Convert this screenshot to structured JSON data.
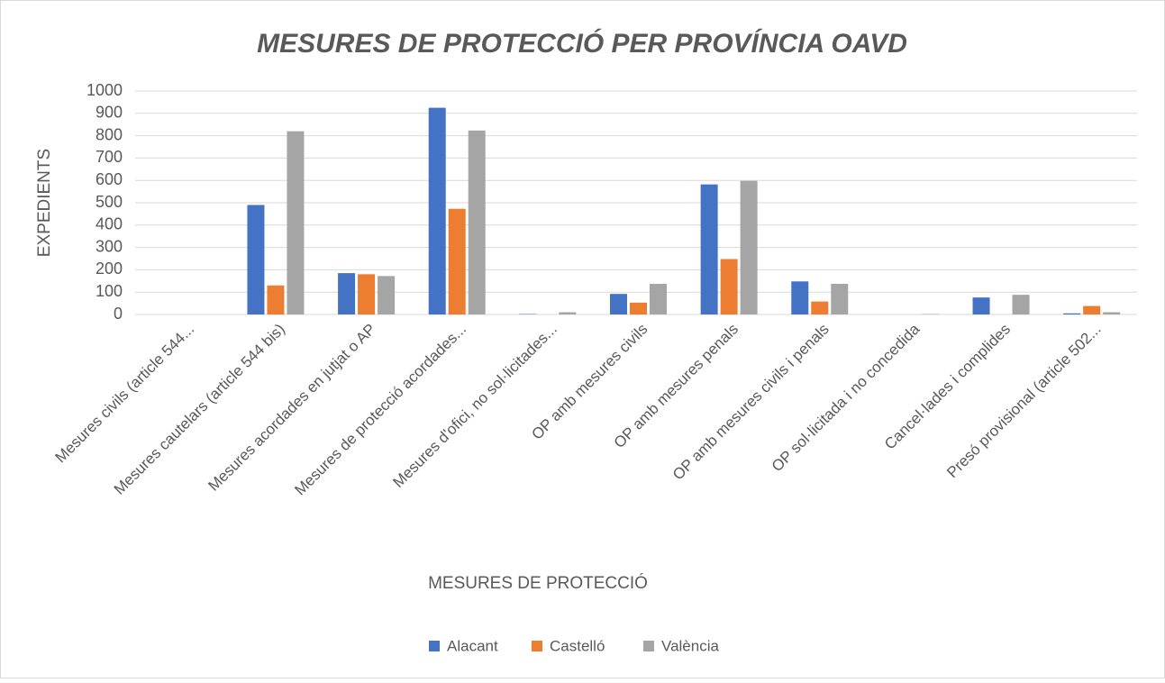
{
  "chart_data": {
    "type": "bar",
    "title": "MESURES DE PROTECCIÓ PER PROVÍNCIA OAVD",
    "x_label": "MESURES DE PROTECCIÓ",
    "y_label": "EXPEDIENTS",
    "categories": [
      "Mesures civils (article 544...",
      "Mesures cautelars (article 544 bis)",
      "Mesures acordades en jutjat o AP",
      "Mesures de protecció acordades...",
      "Mesures d'ofici, no sol·licitades...",
      "OP amb mesures civils",
      "OP amb mesures penals",
      "OP amb mesures civils i penals",
      "OP sol·licitada i no concedida",
      "Cancel·lades i complides",
      "Presó provisional (article 502..."
    ],
    "series": [
      {
        "name": "Alacant",
        "color": "#4472c4",
        "values": [
          0,
          490,
          185,
          925,
          2,
          92,
          582,
          148,
          0,
          76,
          5
        ]
      },
      {
        "name": "Castelló",
        "color": "#ed7d31",
        "values": [
          0,
          130,
          180,
          473,
          0,
          53,
          248,
          58,
          0,
          0,
          38
        ]
      },
      {
        "name": "València",
        "color": "#a5a5a5",
        "values": [
          0,
          820,
          172,
          823,
          10,
          137,
          598,
          137,
          2,
          88,
          10
        ]
      }
    ],
    "ylim": [
      0,
      1000
    ],
    "yticks": [
      0,
      100,
      200,
      300,
      400,
      500,
      600,
      700,
      800,
      900,
      1000
    ],
    "grid": true,
    "legend": "bottom"
  }
}
